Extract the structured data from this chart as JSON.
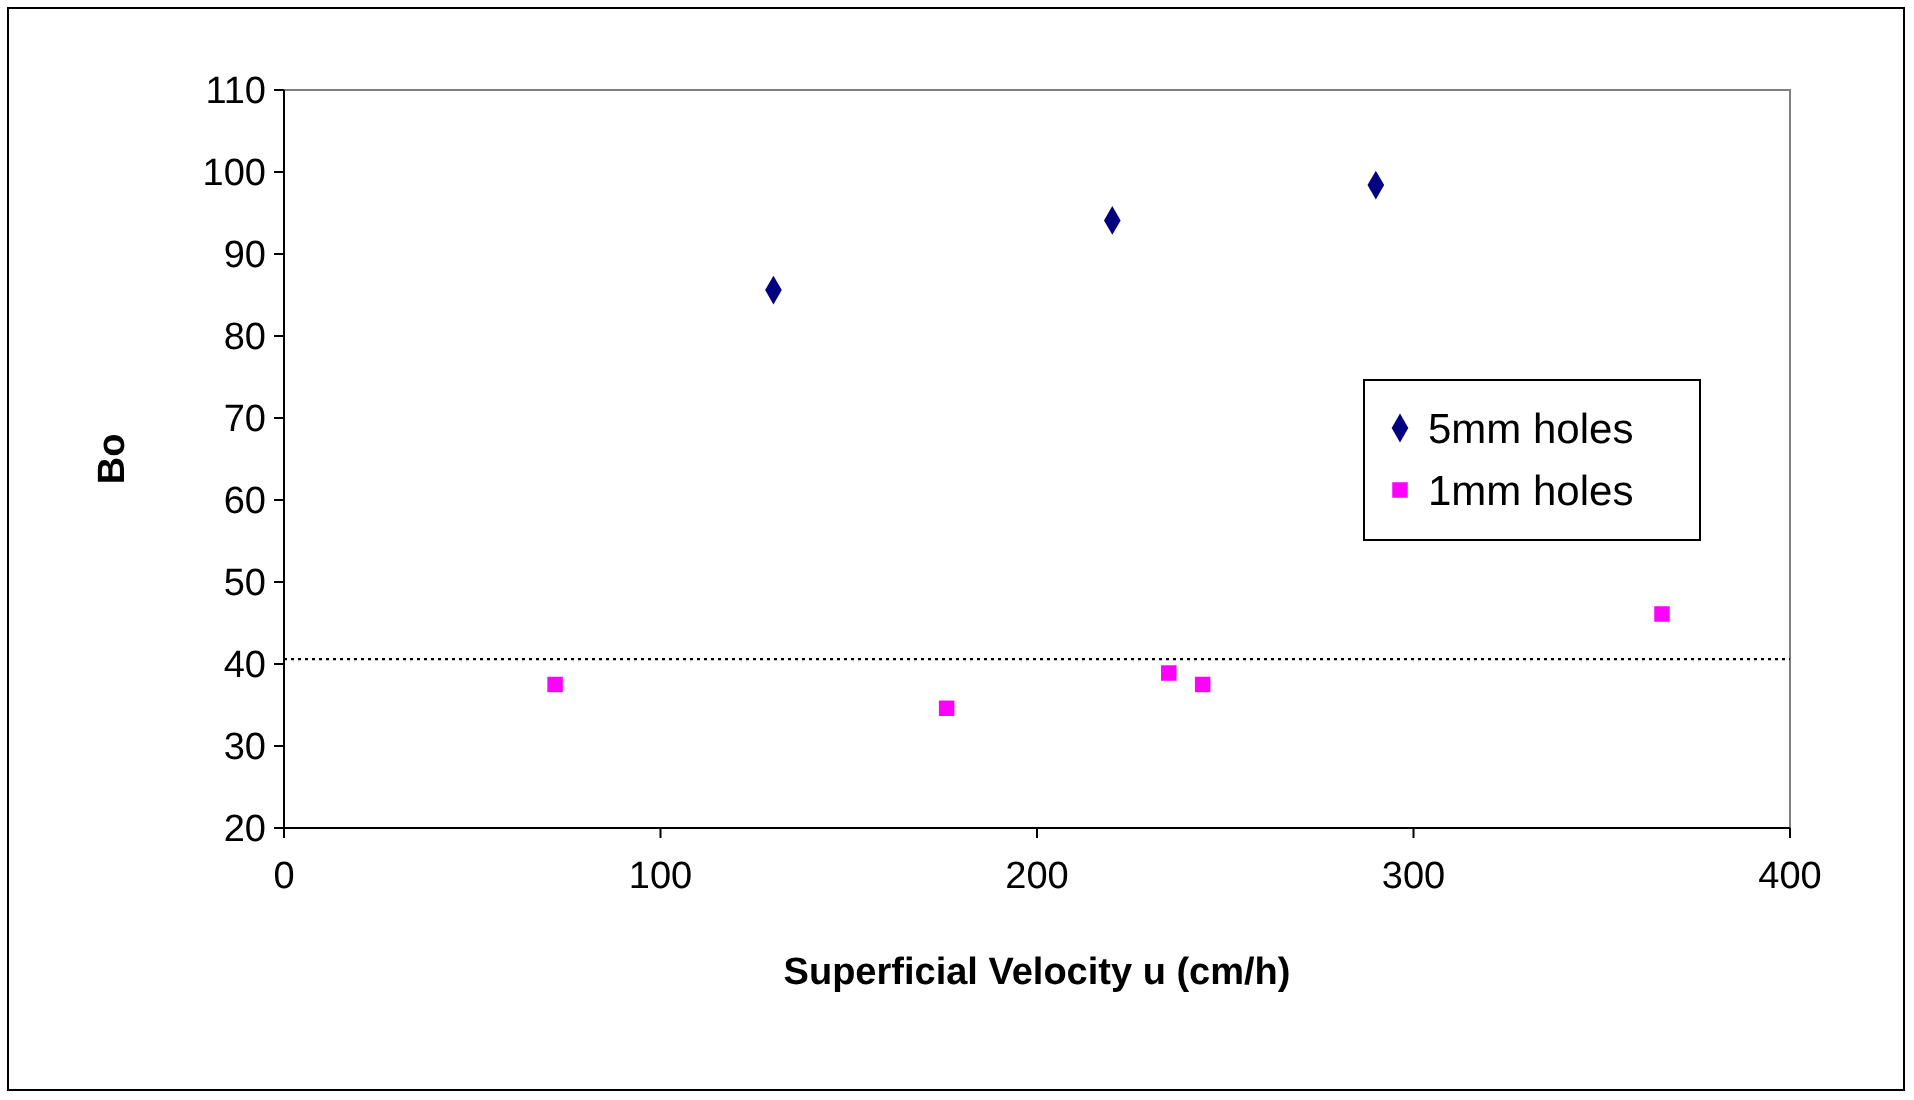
{
  "chart_data": {
    "type": "scatter",
    "xlabel": "Superficial Velocity u (cm/h)",
    "ylabel": "Bo",
    "xlim": [
      0,
      400
    ],
    "xticks": [
      0,
      100,
      200,
      300,
      400
    ],
    "ylim": [
      20,
      110
    ],
    "yticks": [
      20,
      30,
      40,
      50,
      60,
      70,
      80,
      90,
      100,
      110
    ],
    "grid": false,
    "legend": "right",
    "series": [
      {
        "name": "5mm holes",
        "color": "#000080",
        "marker": "diamond",
        "x": [
          130,
          220,
          290
        ],
        "values": [
          85.6,
          94.1,
          98.4
        ]
      },
      {
        "name": "1mm holes",
        "color": "#ff00ff",
        "marker": "square",
        "x": [
          72,
          176,
          235,
          244,
          366
        ],
        "values": [
          37.5,
          34.6,
          38.9,
          37.5,
          46.1
        ]
      }
    ],
    "ref_lines": [
      {
        "axis": "y",
        "value": 40.6,
        "line_style": "dotted",
        "color": "#000000"
      }
    ]
  }
}
